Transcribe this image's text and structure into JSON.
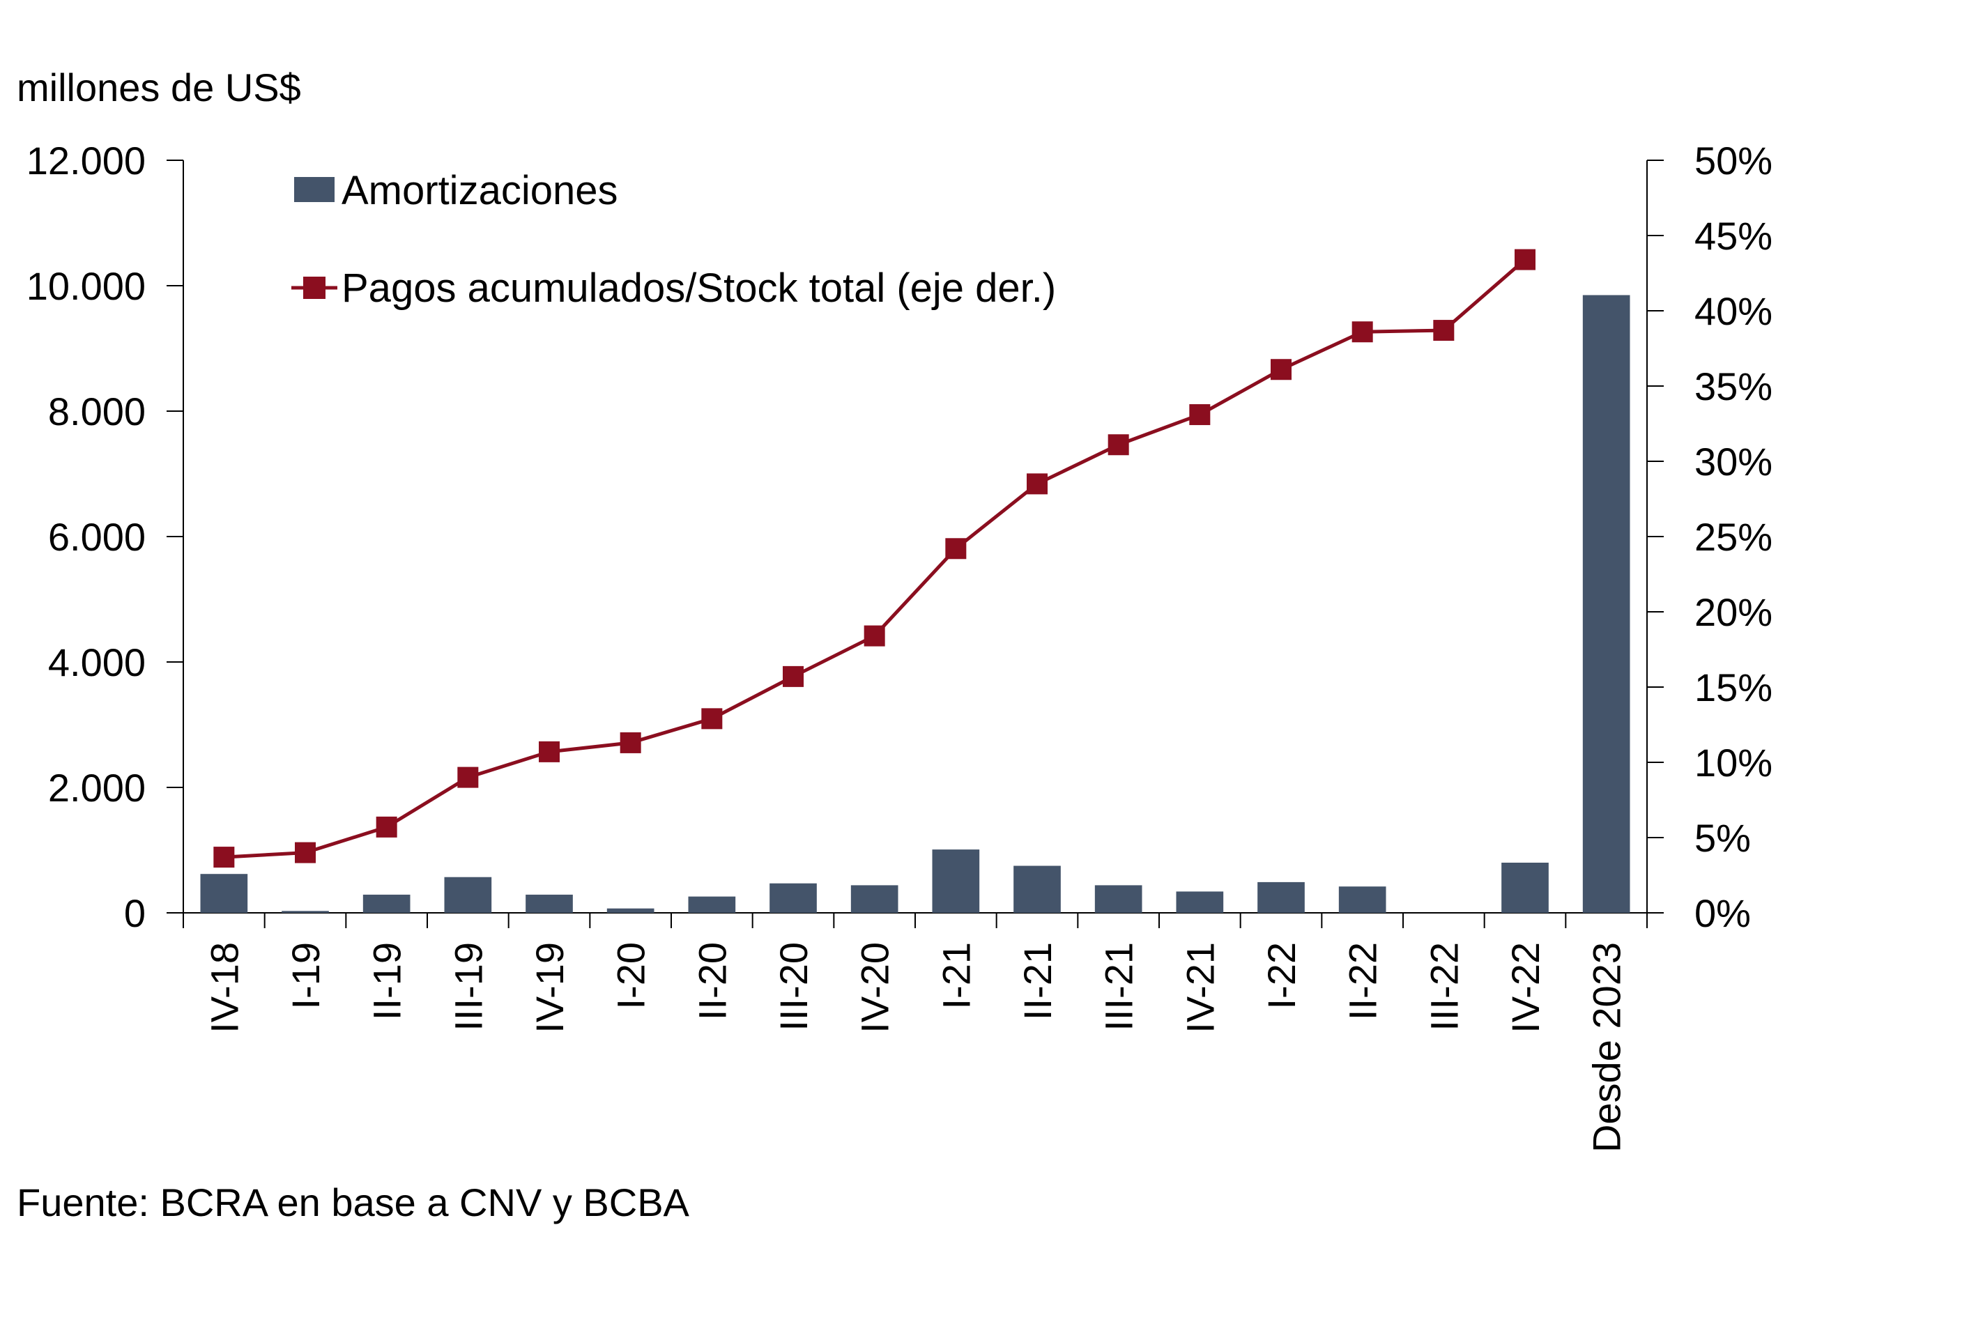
{
  "chart_data": {
    "type": "bar+line",
    "unit_label": "millones de US$",
    "source": "Fuente: BCRA en base a CNV y BCBA",
    "categories": [
      "IV-18",
      "I-19",
      "II-19",
      "III-19",
      "IV-19",
      "I-20",
      "II-20",
      "III-20",
      "IV-20",
      "I-21",
      "II-21",
      "III-21",
      "IV-21",
      "I-22",
      "II-22",
      "III-22",
      "IV-22",
      "Desde 2023"
    ],
    "series": [
      {
        "name": "Amortizaciones",
        "type": "bar",
        "axis": "left",
        "color": "#44546A",
        "values": [
          620,
          30,
          290,
          570,
          290,
          70,
          260,
          470,
          440,
          1010,
          750,
          440,
          340,
          490,
          420,
          0,
          800,
          9850
        ]
      },
      {
        "name": "Pagos acumulados/Stock total (eje der.)",
        "type": "line",
        "axis": "right",
        "color": "#8B0E1F",
        "values": [
          3.7,
          4.0,
          5.7,
          9.0,
          10.7,
          11.3,
          12.9,
          15.7,
          18.4,
          24.2,
          28.5,
          31.1,
          33.1,
          36.1,
          38.6,
          38.7,
          43.4,
          null
        ]
      }
    ],
    "y_left": {
      "min": 0,
      "max": 12000,
      "ticks": [
        0,
        2000,
        4000,
        6000,
        8000,
        10000,
        12000
      ],
      "tick_labels": [
        "0",
        "2.000",
        "4.000",
        "6.000",
        "8.000",
        "10.000",
        "12.000"
      ]
    },
    "y_right": {
      "min": 0,
      "max": 50,
      "ticks": [
        0,
        5,
        10,
        15,
        20,
        25,
        30,
        35,
        40,
        45,
        50
      ],
      "tick_labels": [
        "0%",
        "5%",
        "10%",
        "15%",
        "20%",
        "25%",
        "30%",
        "35%",
        "40%",
        "45%",
        "50%"
      ]
    },
    "legend_position": "top-left"
  }
}
